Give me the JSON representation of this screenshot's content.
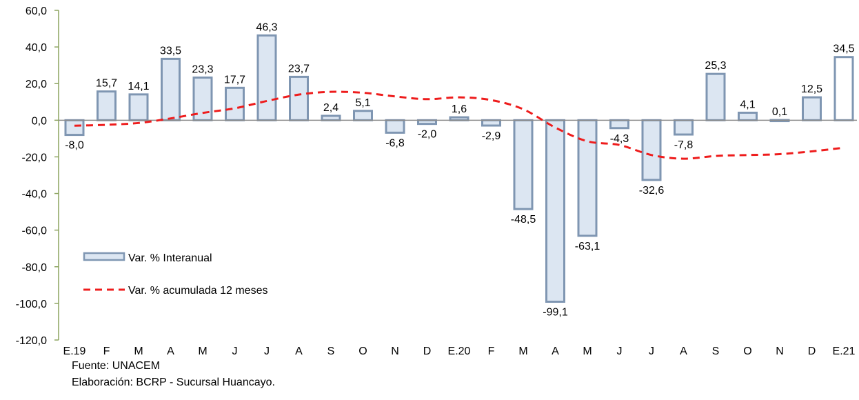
{
  "chart_data": {
    "type": "bar",
    "categories": [
      "E.19",
      "F",
      "M",
      "A",
      "M",
      "J",
      "J",
      "A",
      "S",
      "O",
      "N",
      "D",
      "E.20",
      "F",
      "M",
      "A",
      "M",
      "J",
      "J",
      "A",
      "S",
      "O",
      "N",
      "D",
      "E.21"
    ],
    "series": [
      {
        "name": "Var. % Interanual",
        "type": "bar",
        "values": [
          -8.0,
          15.7,
          14.1,
          33.5,
          23.3,
          17.7,
          46.3,
          23.7,
          2.4,
          5.1,
          -6.8,
          -2.0,
          1.6,
          -2.9,
          -48.5,
          -99.1,
          -63.1,
          -4.3,
          -32.6,
          -7.8,
          25.3,
          4.1,
          0.1,
          12.5,
          34.5
        ],
        "labels": [
          "-8,0",
          "15,7",
          "14,1",
          "33,5",
          "23,3",
          "17,7",
          "46,3",
          "23,7",
          "2,4",
          "5,1",
          "-6,8",
          "-2,0",
          "1,6",
          "-2,9",
          "-48,5",
          "-99,1",
          "-63,1",
          "-4,3",
          "-32,6",
          "-7,8",
          "25,3",
          "4,1",
          "0,1",
          "12,5",
          "34,5"
        ],
        "color": "#dce6f2",
        "stroke": "#7f96b2"
      },
      {
        "name": "Var. % acumulada  12 meses",
        "type": "line",
        "values": [
          -3.0,
          -2.5,
          -1.5,
          1.0,
          4.0,
          6.5,
          10.5,
          14.0,
          15.5,
          15.0,
          13.0,
          11.5,
          12.5,
          11.0,
          6.0,
          -4.0,
          -11.5,
          -13.5,
          -19.0,
          -21.0,
          -19.5,
          -19.0,
          -18.5,
          -17.0,
          -15.0
        ],
        "color": "#ee1c1c",
        "dashed": true
      }
    ],
    "ylim": [
      -120,
      60
    ],
    "yticks": [
      60,
      40,
      20,
      0,
      -20,
      -40,
      -60,
      -80,
      -100,
      -120
    ],
    "ytick_labels": [
      "60,0",
      "40,0",
      "20,0",
      "0,0",
      "-20,0",
      "-40,0",
      "-60,0",
      "-80,0",
      "-100,0",
      "-120,0"
    ],
    "axis_color": "#8ca35f",
    "legend_position": "bottom-left",
    "grid": false
  },
  "notes": {
    "source": "Fuente: UNACEM",
    "elaboration": "Elaboración: BCRP - Sucursal Huancayo."
  }
}
